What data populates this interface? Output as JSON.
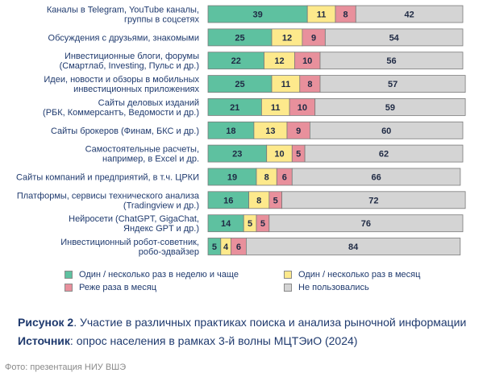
{
  "chart_data": {
    "type": "bar",
    "stacked": true,
    "orientation": "horizontal",
    "categories": [
      [
        "Каналы в Telegram, YouTube каналы,",
        "группы в соцсетях"
      ],
      [
        "Обсуждения с друзьями, знакомыми"
      ],
      [
        "Инвестиционные блоги, форумы",
        "(Смартлаб, Investing, Пульс и др.)"
      ],
      [
        "Идеи, новости и обзоры в мобильных",
        "инвестиционных приложениях"
      ],
      [
        "Сайты деловых изданий",
        "(РБК, Коммерсантъ, Ведомости и др.)"
      ],
      [
        "Сайты брокеров (Финам, БКС и др.)"
      ],
      [
        "Самостоятельные расчеты,",
        "например, в Excel и др."
      ],
      [
        "Сайты компаний и предприятий, в т.ч. ЦРКИ"
      ],
      [
        "Платформы, сервисы технического анализа",
        "(Tradingview и др.)"
      ],
      [
        "Нейросети (ChatGPT, GigaChat,",
        "Яндекс GPT и др.)"
      ],
      [
        "Инвестиционный робот-советник,",
        "робо-эдвайзер"
      ]
    ],
    "series": [
      {
        "name": "Один / несколько раз в неделю и чаще",
        "color": "#5ec1a0",
        "values": [
          39,
          25,
          22,
          25,
          21,
          18,
          23,
          19,
          16,
          14,
          5
        ]
      },
      {
        "name": "Один / несколько раз в месяц",
        "color": "#fde98c",
        "values": [
          11,
          12,
          12,
          11,
          11,
          13,
          10,
          8,
          8,
          5,
          4
        ]
      },
      {
        "name": "Реже раза в месяц",
        "color": "#e8909c",
        "values": [
          8,
          9,
          10,
          8,
          10,
          9,
          5,
          6,
          5,
          5,
          6
        ]
      },
      {
        "name": "Не пользовались",
        "color": "#d4d4d4",
        "values": [
          42,
          54,
          56,
          57,
          59,
          60,
          62,
          66,
          72,
          76,
          84
        ]
      }
    ],
    "legend_position": "bottom",
    "xlim": [
      0,
      100
    ]
  },
  "caption": {
    "figure_label": "Рисунок 2",
    "figure_text": ". Участие в различных практиках поиска и анализа рыночной информации",
    "source_label": "Источник",
    "source_text": ": опрос населения в рамках 3-й волны МЦТЭиО (2024)"
  },
  "credit": "Фото: презентация НИУ ВШЭ"
}
